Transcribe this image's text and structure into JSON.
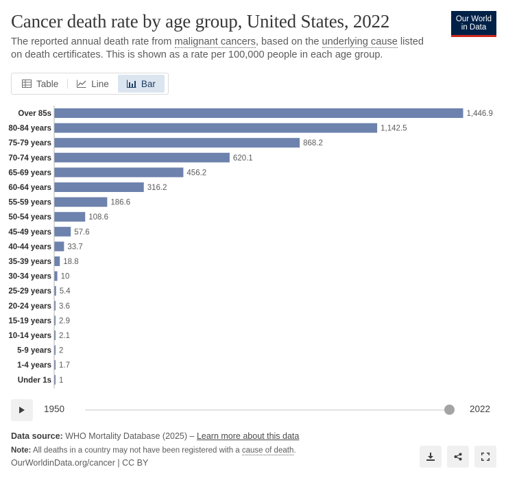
{
  "header": {
    "title": "Cancer death rate by age group, United States, 2022",
    "subtitle_1": "The reported annual death rate from ",
    "subtitle_term_1": "malignant cancers",
    "subtitle_2": ", based on the ",
    "subtitle_term_2": "underlying cause",
    "subtitle_3": " listed on death certificates. This is shown as a rate per 100,000 people in each age group.",
    "logo_line1": "Our World",
    "logo_line2": "in Data"
  },
  "tabs": [
    {
      "label": "Table",
      "icon": "table-icon"
    },
    {
      "label": "Line",
      "icon": "line-chart-icon"
    },
    {
      "label": "Bar",
      "icon": "bar-chart-icon",
      "active": true
    }
  ],
  "chart_data": {
    "type": "bar",
    "orientation": "horizontal",
    "categories": [
      "Over 85s",
      "80-84 years",
      "75-79 years",
      "70-74 years",
      "65-69 years",
      "60-64 years",
      "55-59 years",
      "50-54 years",
      "45-49 years",
      "40-44 years",
      "35-39 years",
      "30-34 years",
      "25-29 years",
      "20-24 years",
      "15-19 years",
      "10-14 years",
      "5-9 years",
      "1-4 years",
      "Under 1s"
    ],
    "values": [
      1446.9,
      1142.5,
      868.2,
      620.1,
      456.2,
      316.2,
      186.6,
      108.6,
      57.6,
      33.7,
      18.8,
      10,
      5.4,
      3.6,
      2.9,
      2.1,
      2,
      1.7,
      1
    ],
    "value_labels": [
      "1,446.9",
      "1,142.5",
      "868.2",
      "620.1",
      "456.2",
      "316.2",
      "186.6",
      "108.6",
      "57.6",
      "33.7",
      "18.8",
      "10",
      "5.4",
      "3.6",
      "2.9",
      "2.1",
      "2",
      "1.7",
      "1"
    ],
    "bar_color": "#6d82ad"
  },
  "timeline": {
    "start_year": "1950",
    "end_year": "2022"
  },
  "footer": {
    "source_label": "Data source:",
    "source_text": " WHO Mortality Database (2025) – ",
    "source_link": "Learn more about this data",
    "note_label": "Note:",
    "note_text": " All deaths in a country may not have been registered with a ",
    "note_link": "cause of death",
    "note_end": ".",
    "credit": "OurWorldinData.org/cancer | CC BY"
  },
  "actions": [
    {
      "icon": "download-icon"
    },
    {
      "icon": "share-icon"
    },
    {
      "icon": "fullscreen-icon"
    }
  ]
}
